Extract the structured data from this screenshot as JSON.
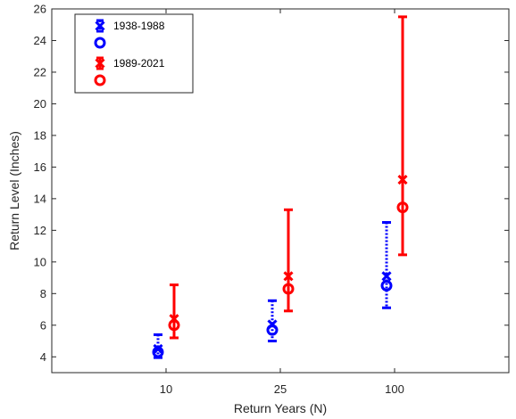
{
  "chart_data": {
    "type": "errorbar",
    "xlabel": "Return Years (N)",
    "ylabel": "Return Level (Inches)",
    "categories": [
      "10",
      "25",
      "100"
    ],
    "ylim": [
      3,
      26
    ],
    "yticks": [
      4,
      6,
      8,
      10,
      12,
      14,
      16,
      18,
      20,
      22,
      24,
      26
    ],
    "grid": false,
    "legend_position": "top-left",
    "series": [
      {
        "name": "1938-1988",
        "color": "#0000ff",
        "line_style": "dotted",
        "offset_side": "left",
        "x_marker_values": [
          4.5,
          6.05,
          9.1
        ],
        "o_marker_values": [
          4.3,
          5.7,
          8.5
        ],
        "lower": [
          3.95,
          5.0,
          7.1
        ],
        "upper": [
          5.4,
          7.55,
          12.5
        ]
      },
      {
        "name": "1989-2021",
        "color": "#ff0000",
        "line_style": "solid",
        "offset_side": "right",
        "x_marker_values": [
          6.4,
          9.1,
          15.2
        ],
        "o_marker_values": [
          6.0,
          8.3,
          13.45
        ],
        "lower": [
          5.2,
          6.9,
          10.45
        ],
        "upper": [
          8.55,
          13.3,
          25.5
        ]
      }
    ]
  }
}
